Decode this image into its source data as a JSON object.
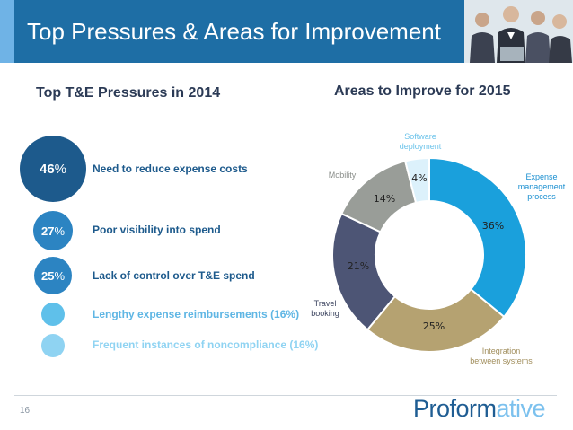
{
  "header": {
    "title": "Top Pressures & Areas for Improvement"
  },
  "left_title": "Top T&E Pressures in 2014",
  "right_title": "Areas to Improve for 2015",
  "pressures": [
    {
      "pct": "46",
      "unit": "%",
      "label": "Need to reduce expense costs"
    },
    {
      "pct": "27",
      "unit": "%",
      "label": "Poor visibility into spend"
    },
    {
      "pct": "25",
      "unit": "%",
      "label": "Lack of control over T&E spend"
    },
    {
      "pct": "",
      "unit": "",
      "label": "Lengthy expense reimbursements (16%)"
    },
    {
      "pct": "",
      "unit": "",
      "label": "Frequent instances of noncompliance (16%)"
    }
  ],
  "colors": {
    "header": "#1e6ea5",
    "dark_blue": "#1d5a8c",
    "mid_blue": "#2c84c2",
    "light_blue": "#5fc0ea",
    "pale_blue": "#8fd3f2",
    "expense": "#1aa0dc",
    "integration": "#b5a271",
    "travel": "#4d5575",
    "mobility": "#999d98",
    "software": "#dcf1fb"
  },
  "chart_data": {
    "type": "pie",
    "title": "Areas to Improve for 2015",
    "donut": true,
    "slices": [
      {
        "name": "Expense management process",
        "value": 36,
        "label": "36%",
        "color": "#1aa0dc",
        "name_lines": [
          "Expense",
          "management",
          "process"
        ],
        "label_color": "#1a8fd0"
      },
      {
        "name": "Integration between systems",
        "value": 25,
        "label": "25%",
        "color": "#b5a271",
        "name_lines": [
          "Integration",
          "between systems"
        ],
        "label_color": "#a28f5e"
      },
      {
        "name": "Travel booking",
        "value": 21,
        "label": "21%",
        "color": "#4d5575",
        "name_lines": [
          "Travel",
          "booking"
        ],
        "label_color": "#3d4560"
      },
      {
        "name": "Mobility",
        "value": 14,
        "label": "14%",
        "color": "#999d98",
        "name_lines": [
          "Mobility"
        ],
        "label_color": "#8a8e8a"
      },
      {
        "name": "Software deployment",
        "value": 4,
        "label": "4%",
        "color": "#dcf1fb",
        "name_lines": [
          "Software",
          "deployment"
        ],
        "label_color": "#6cc3ea"
      }
    ]
  },
  "footer": {
    "page": "16",
    "logo_main": "Proform",
    "logo_accent": "ative"
  }
}
